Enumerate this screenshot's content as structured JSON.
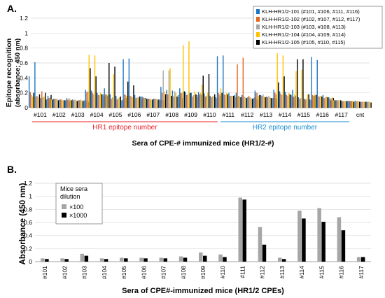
{
  "panel_a_label": "A.",
  "panel_b_label": "B.",
  "chart_data": [
    {
      "type": "bar",
      "title": "",
      "xlabel": "Sera of CPE-# immunized mice (HR1/2-#)",
      "ylabel_line1": "Epitope recognition",
      "ylabel_line2": "(absorbance; 450 nm)",
      "ylim": [
        0,
        1.2
      ],
      "yticks": [
        "0",
        "0.2",
        "0.4",
        "0.6",
        "0.8",
        "1",
        "1.2"
      ],
      "grid": true,
      "legend_position": "top-right",
      "categories": [
        "#101",
        "#102",
        "#103",
        "#104",
        "#105",
        "#106",
        "#107",
        "#108",
        "#109",
        "#110",
        "#111",
        "#112",
        "#113",
        "#114",
        "#115",
        "#116",
        "#117",
        "cnt"
      ],
      "group_labels": [
        {
          "text": "HR1 epitope number",
          "from": 0,
          "to": 9,
          "color": "#e8202a"
        },
        {
          "text": "HR2 epitope number",
          "from": 10,
          "to": 16,
          "color": "#1a8dd1"
        }
      ],
      "series": [
        {
          "name": "KLH-HR1/2-101 (#101, #106, #111, #116)",
          "color": "#1f74c4",
          "values": [
            [
              0.42,
              0.61,
              0.13,
              0.11
            ],
            [
              0.16,
              0.12,
              0.11,
              0.1
            ],
            [
              0.13,
              0.11,
              0.1,
              0.1
            ],
            [
              0.24,
              0.23,
              0.2,
              0.18
            ],
            [
              0.26,
              0.18,
              0.16,
              0.1
            ],
            [
              0.65,
              0.66,
              0.17,
              0.15
            ],
            [
              0.15,
              0.12,
              0.12,
              0.11
            ],
            [
              0.28,
              0.24,
              0.23,
              0.17
            ],
            [
              0.26,
              0.21,
              0.2,
              0.17
            ],
            [
              0.21,
              0.19,
              0.16,
              0.14
            ],
            [
              0.69,
              0.7,
              0.2,
              0.17
            ],
            [
              0.2,
              0.17,
              0.14,
              0.13
            ],
            [
              0.23,
              0.17,
              0.15,
              0.13
            ],
            [
              0.24,
              0.22,
              0.21,
              0.17
            ],
            [
              0.24,
              0.14,
              0.12,
              0.11
            ],
            [
              0.68,
              0.64,
              0.17,
              0.14
            ],
            [
              0.1,
              0.1,
              0.09,
              0.09
            ],
            [
              0.09,
              0.09,
              0.08,
              0.08
            ]
          ]
        },
        {
          "name": "KLH-HR1/2-102 (#102, #107, #112, #117)",
          "color": "#e4661f",
          "values": [
            [
              0.21,
              0.15,
              0.22,
              0.12
            ],
            [
              0.13,
              0.12,
              0.11,
              0.1
            ],
            [
              0.11,
              0.1,
              0.1,
              0.09
            ],
            [
              0.21,
              0.2,
              0.17,
              0.15
            ],
            [
              0.18,
              0.12,
              0.11,
              0.1
            ],
            [
              0.18,
              0.16,
              0.13,
              0.12
            ],
            [
              0.14,
              0.12,
              0.12,
              0.1
            ],
            [
              0.2,
              0.18,
              0.15,
              0.14
            ],
            [
              0.2,
              0.17,
              0.15,
              0.14
            ],
            [
              0.18,
              0.15,
              0.14,
              0.12
            ],
            [
              0.2,
              0.18,
              0.16,
              0.14
            ],
            [
              0.58,
              0.67,
              0.16,
              0.14
            ],
            [
              0.2,
              0.16,
              0.14,
              0.13
            ],
            [
              0.2,
              0.19,
              0.17,
              0.15
            ],
            [
              0.14,
              0.12,
              0.11,
              0.1
            ],
            [
              0.17,
              0.15,
              0.13,
              0.12
            ],
            [
              0.1,
              0.1,
              0.09,
              0.09
            ],
            [
              0.09,
              0.09,
              0.08,
              0.08
            ]
          ]
        },
        {
          "name": "KLH-HR1/2-103 (#103, #108, #113)",
          "color": "#a6a6a6",
          "values": [
            [
              0.17,
              0.16,
              0.14,
              0.12
            ],
            [
              0.14,
              0.12,
              0.11,
              0.1
            ],
            [
              0.13,
              0.11,
              0.11,
              0.1
            ],
            [
              0.22,
              0.18,
              0.17,
              0.16
            ],
            [
              0.17,
              0.14,
              0.13,
              0.12
            ],
            [
              0.17,
              0.15,
              0.14,
              0.13
            ],
            [
              0.13,
              0.12,
              0.12,
              0.11
            ],
            [
              0.5,
              0.5,
              0.22,
              0.18
            ],
            [
              0.2,
              0.18,
              0.17,
              0.16
            ],
            [
              0.18,
              0.16,
              0.15,
              0.14
            ],
            [
              0.18,
              0.17,
              0.16,
              0.15
            ],
            [
              0.16,
              0.15,
              0.14,
              0.13
            ],
            [
              0.2,
              0.18,
              0.16,
              0.15
            ],
            [
              0.18,
              0.17,
              0.16,
              0.15
            ],
            [
              0.15,
              0.13,
              0.12,
              0.11
            ],
            [
              0.16,
              0.15,
              0.14,
              0.13
            ],
            [
              0.1,
              0.1,
              0.09,
              0.09
            ],
            [
              0.09,
              0.09,
              0.08,
              0.08
            ]
          ]
        },
        {
          "name": "KLH-HR1/2-104 (#104, #109, #114)",
          "color": "#ffc000",
          "values": [
            [
              0.15,
              0.14,
              0.15,
              0.13
            ],
            [
              0.11,
              0.12,
              0.1,
              0.1
            ],
            [
              0.11,
              0.1,
              0.1,
              0.09
            ],
            [
              0.71,
              0.7,
              0.2,
              0.18
            ],
            [
              0.17,
              0.45,
              0.14,
              0.12
            ],
            [
              0.16,
              0.14,
              0.13,
              0.12
            ],
            [
              0.12,
              0.11,
              0.11,
              0.1
            ],
            [
              0.22,
              0.53,
              0.2,
              0.18
            ],
            [
              0.84,
              0.89,
              0.22,
              0.2
            ],
            [
              0.31,
              0.2,
              0.16,
              0.14
            ],
            [
              0.26,
              0.2,
              0.16,
              0.14
            ],
            [
              0.15,
              0.14,
              0.13,
              0.12
            ],
            [
              0.16,
              0.15,
              0.14,
              0.13
            ],
            [
              0.73,
              0.7,
              0.2,
              0.18
            ],
            [
              0.49,
              0.51,
              0.18,
              0.16
            ],
            [
              0.18,
              0.16,
              0.15,
              0.14
            ],
            [
              0.1,
              0.1,
              0.09,
              0.09
            ],
            [
              0.09,
              0.09,
              0.08,
              0.08
            ]
          ]
        },
        {
          "name": "KLH-HR1/2-105 (#105, #110, #115)",
          "color": "#000000",
          "values": [
            [
              0.2,
              0.18,
              0.2,
              0.17
            ],
            [
              0.11,
              0.1,
              0.1,
              0.09
            ],
            [
              0.1,
              0.09,
              0.09,
              0.08
            ],
            [
              0.53,
              0.42,
              0.18,
              0.16
            ],
            [
              0.6,
              0.55,
              0.15,
              0.13
            ],
            [
              0.35,
              0.3,
              0.15,
              0.13
            ],
            [
              0.12,
              0.11,
              0.11,
              0.1
            ],
            [
              0.18,
              0.16,
              0.15,
              0.13
            ],
            [
              0.22,
              0.2,
              0.18,
              0.17
            ],
            [
              0.43,
              0.45,
              0.18,
              0.16
            ],
            [
              0.2,
              0.18,
              0.16,
              0.15
            ],
            [
              0.14,
              0.13,
              0.12,
              0.11
            ],
            [
              0.17,
              0.14,
              0.13,
              0.12
            ],
            [
              0.34,
              0.42,
              0.18,
              0.16
            ],
            [
              0.65,
              0.65,
              0.18,
              0.16
            ],
            [
              0.17,
              0.15,
              0.14,
              0.13
            ],
            [
              0.1,
              0.1,
              0.09,
              0.09
            ],
            [
              0.08,
              0.08,
              0.08,
              0.07
            ]
          ]
        }
      ]
    },
    {
      "type": "bar",
      "title": "",
      "xlabel": "Sera of CPE#-immunized mice (HR1/2 CPEs)",
      "ylabel": "Absorbance (450 nm)",
      "ylim": [
        0,
        1.2
      ],
      "yticks": [
        "0",
        "0.2",
        "0.4",
        "0.6",
        "0.8",
        "1",
        "1.2"
      ],
      "grid": true,
      "legend_title_line1": "Mice sera",
      "legend_title_line2": "dilution",
      "legend_position": "top-left",
      "categories": [
        "#101",
        "#102",
        "#103",
        "#104",
        "#105",
        "#106",
        "#107",
        "#108",
        "#109",
        "#110",
        "#111",
        "#112",
        "#113",
        "#114",
        "#115",
        "#116",
        "#117"
      ],
      "series": [
        {
          "name": "×100",
          "color": "#a6a6a6",
          "values": [
            0.05,
            0.05,
            0.12,
            0.05,
            0.06,
            0.06,
            0.06,
            0.08,
            0.14,
            0.11,
            0.98,
            0.53,
            0.06,
            0.78,
            0.82,
            0.68,
            0.07
          ]
        },
        {
          "name": "×1000",
          "color": "#000000",
          "values": [
            0.04,
            0.04,
            0.09,
            0.04,
            0.05,
            0.05,
            0.05,
            0.06,
            0.09,
            0.07,
            0.95,
            0.26,
            0.04,
            0.66,
            0.61,
            0.48,
            0.07
          ]
        }
      ]
    }
  ]
}
